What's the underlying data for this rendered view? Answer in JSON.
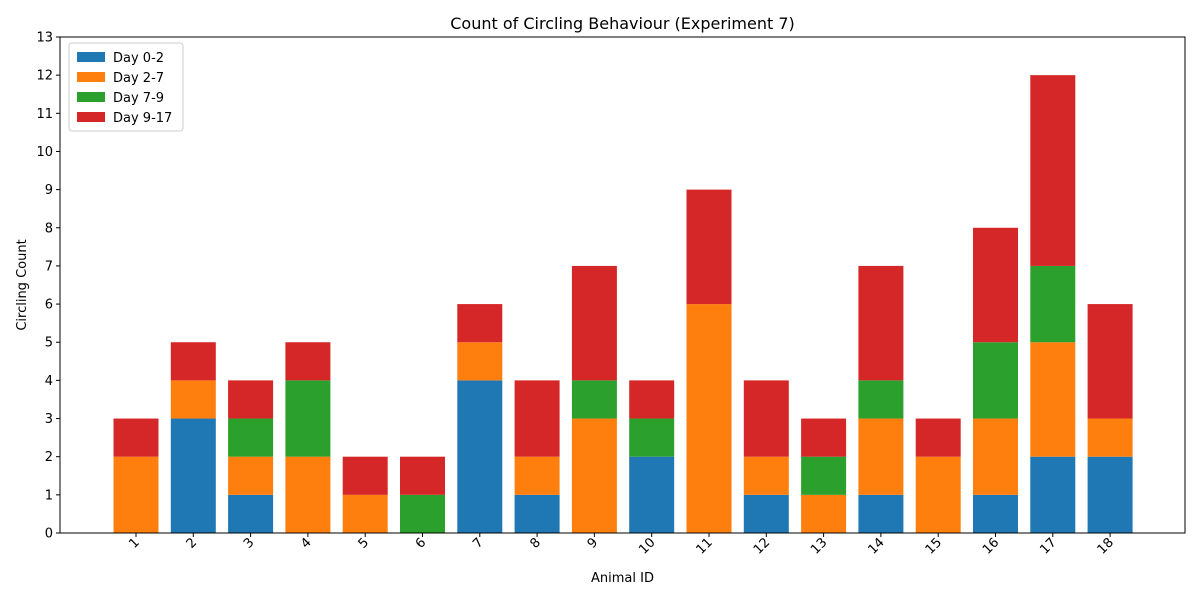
{
  "chart_data": {
    "type": "bar",
    "stacked": true,
    "title": "Count of Circling Behaviour (Experiment 7)",
    "xlabel": "Animal ID",
    "ylabel": "Circling Count",
    "ylim": [
      0,
      13
    ],
    "yticks": [
      0,
      1,
      2,
      3,
      4,
      5,
      6,
      7,
      8,
      9,
      10,
      11,
      12,
      13
    ],
    "grid": false,
    "legend_position": "top-left",
    "categories": [
      "1",
      "2",
      "3",
      "4",
      "5",
      "6",
      "7",
      "8",
      "9",
      "10",
      "11",
      "12",
      "13",
      "14",
      "15",
      "16",
      "17",
      "18"
    ],
    "series": [
      {
        "name": "Day 0-2",
        "color": "#1f77b4",
        "values": [
          0,
          3,
          1,
          0,
          0,
          0,
          4,
          1,
          0,
          2,
          0,
          1,
          0,
          1,
          0,
          1,
          2,
          2
        ]
      },
      {
        "name": "Day 2-7",
        "color": "#ff7f0e",
        "values": [
          2,
          1,
          1,
          2,
          1,
          0,
          1,
          1,
          3,
          0,
          6,
          1,
          1,
          2,
          2,
          2,
          3,
          1
        ]
      },
      {
        "name": "Day 7-9",
        "color": "#2ca02c",
        "values": [
          0,
          0,
          1,
          2,
          0,
          1,
          0,
          0,
          1,
          1,
          0,
          0,
          1,
          1,
          0,
          2,
          2,
          0
        ]
      },
      {
        "name": "Day 9-17",
        "color": "#d62728",
        "values": [
          1,
          1,
          1,
          1,
          1,
          1,
          1,
          2,
          3,
          1,
          3,
          2,
          1,
          3,
          1,
          3,
          5,
          3
        ]
      }
    ]
  }
}
